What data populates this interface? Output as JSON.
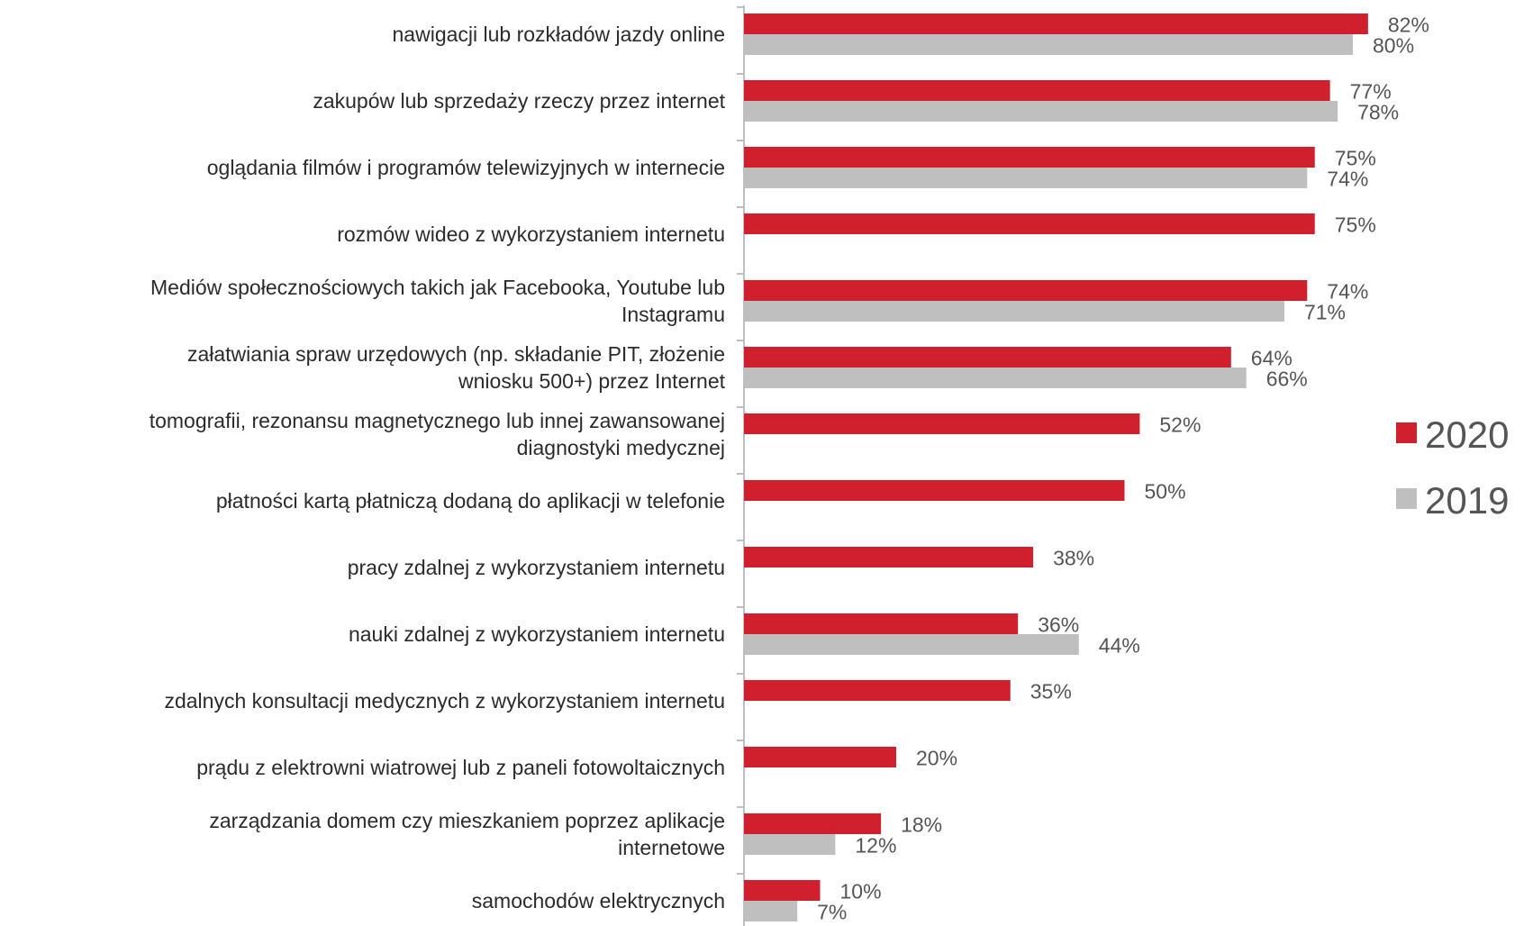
{
  "chart_data": {
    "type": "bar",
    "orientation": "horizontal",
    "xlim": [
      0,
      100
    ],
    "grid": false,
    "legend_position": "right",
    "categories": [
      [
        "nawigacji lub rozkładów jazdy online"
      ],
      [
        "zakupów lub sprzedaży rzeczy przez internet"
      ],
      [
        "oglądania filmów i programów telewizyjnych w internecie"
      ],
      [
        "rozmów wideo z wykorzystaniem internetu"
      ],
      [
        "Mediów społecznościowych takich jak Facebooka, Youtube lub",
        "Instagramu"
      ],
      [
        "załatwiania spraw urzędowych (np. składanie PIT, złożenie",
        "wniosku 500+) przez Internet"
      ],
      [
        "tomografii, rezonansu magnetycznego lub innej zawansowanej",
        "diagnostyki medycznej"
      ],
      [
        "płatności kartą płatniczą dodaną do aplikacji w telefonie"
      ],
      [
        "pracy zdalnej z wykorzystaniem internetu"
      ],
      [
        "nauki zdalnej z wykorzystaniem internetu"
      ],
      [
        "zdalnych konsultacji medycznych z wykorzystaniem internetu"
      ],
      [
        "prądu z elektrowni wiatrowej lub z paneli fotowoltaicznych"
      ],
      [
        "zarządzania domem czy mieszkaniem poprzez aplikacje",
        "internetowe"
      ],
      [
        "samochodów elektrycznych"
      ]
    ],
    "series": [
      {
        "name": "2020",
        "color": "#d0202e",
        "values": [
          82,
          77,
          75,
          75,
          74,
          64,
          52,
          50,
          38,
          36,
          35,
          20,
          18,
          10
        ],
        "labels": [
          "82%",
          "77%",
          "75%",
          "75%",
          "74%",
          "64%",
          "52%",
          "50%",
          "38%",
          "36%",
          "35%",
          "20%",
          "18%",
          "10%"
        ]
      },
      {
        "name": "2019",
        "color": "#bfbfbf",
        "values": [
          80,
          78,
          74,
          null,
          71,
          66,
          null,
          null,
          null,
          44,
          null,
          null,
          12,
          7
        ],
        "labels": [
          "80%",
          "78%",
          "74%",
          null,
          "71%",
          "66%",
          null,
          null,
          null,
          "44%",
          null,
          null,
          "12%",
          "7%"
        ]
      }
    ]
  }
}
